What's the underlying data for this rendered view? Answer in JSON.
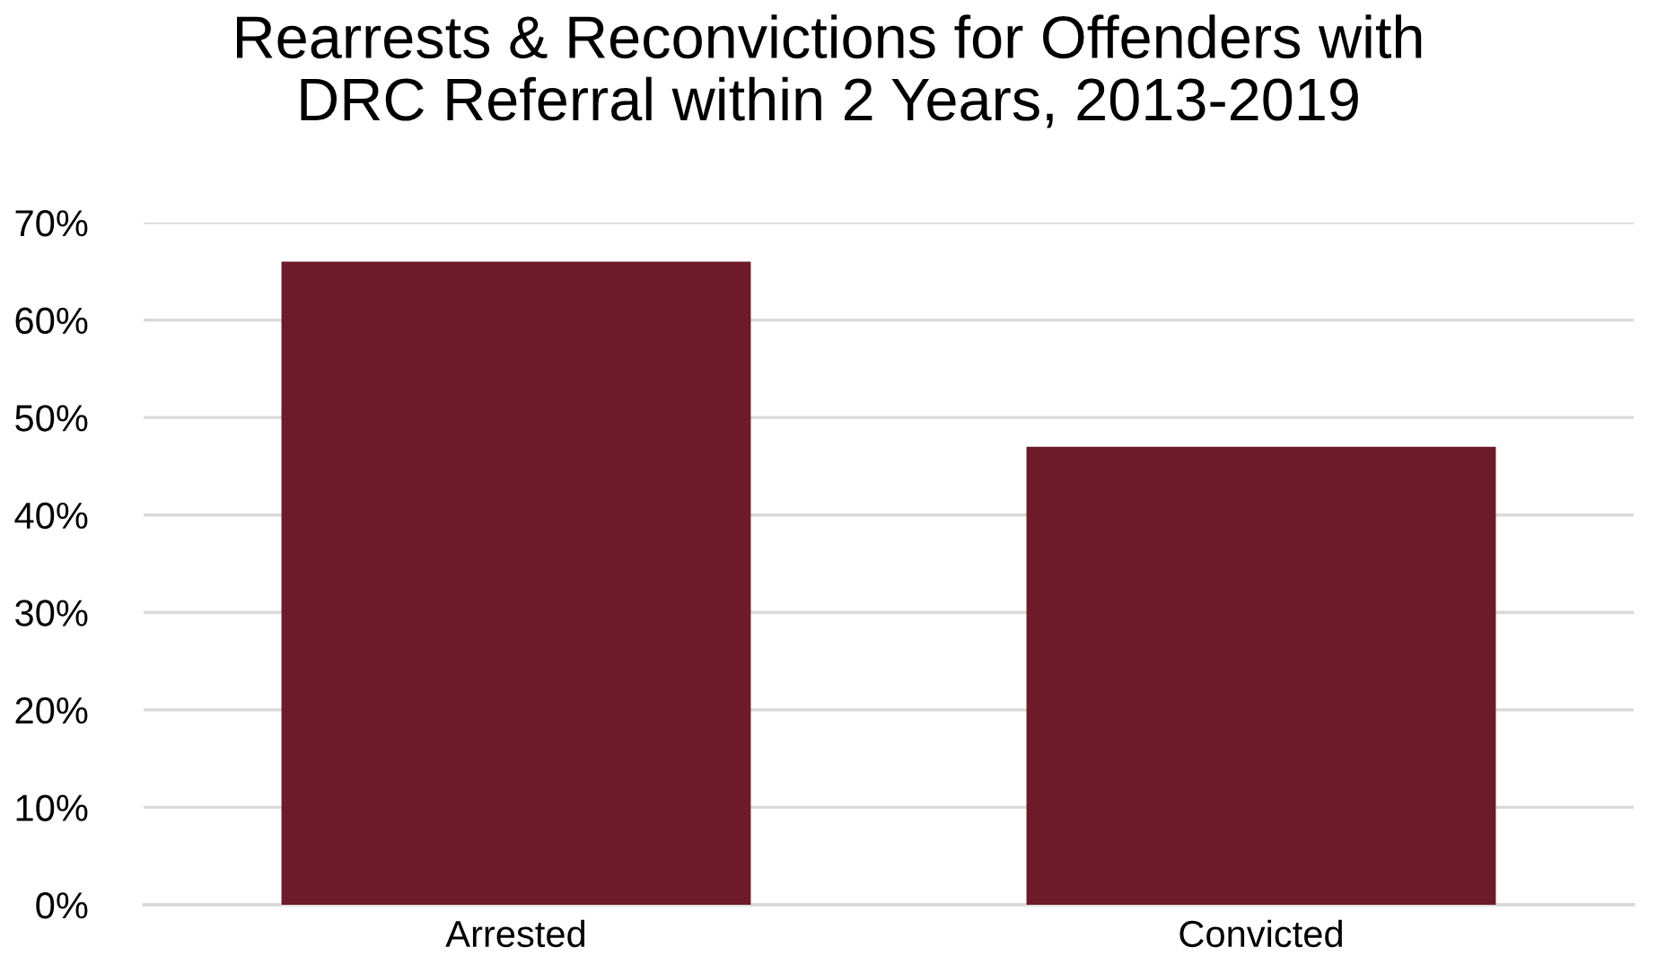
{
  "chart_data": {
    "type": "bar",
    "title": "Rearrests & Reconvictions for Offenders with\nDRC Referral within 2 Years, 2013-2019",
    "categories": [
      "Arrested",
      "Convicted"
    ],
    "values": [
      66,
      47
    ],
    "color": "#6d1a2a",
    "ylim": [
      0,
      70
    ],
    "yticks": [
      {
        "value": 0,
        "label": "0%"
      },
      {
        "value": 10,
        "label": "10%"
      },
      {
        "value": 20,
        "label": "20%"
      },
      {
        "value": 30,
        "label": "30%"
      },
      {
        "value": 40,
        "label": "40%"
      },
      {
        "value": 50,
        "label": "50%"
      },
      {
        "value": 60,
        "label": "60%"
      },
      {
        "value": 70,
        "label": "70%"
      }
    ],
    "grid": "y",
    "legend": false
  }
}
